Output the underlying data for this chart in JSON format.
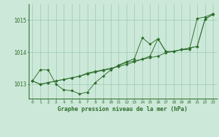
{
  "title": "Graphe pression niveau de la mer (hPa)",
  "background_color": "#cce8d8",
  "grid_color": "#99c8b0",
  "line_color": "#2d6e2d",
  "xlim": [
    -0.5,
    23.5
  ],
  "ylim": [
    1012.55,
    1015.5
  ],
  "yticks": [
    1013,
    1014,
    1015
  ],
  "xticks": [
    0,
    1,
    2,
    3,
    4,
    5,
    6,
    7,
    8,
    9,
    10,
    11,
    12,
    13,
    14,
    15,
    16,
    17,
    18,
    19,
    20,
    21,
    22,
    23
  ],
  "series1": [
    1013.1,
    1013.45,
    1013.45,
    1013.0,
    1012.82,
    1012.8,
    1012.7,
    1012.75,
    1013.05,
    1013.25,
    1013.45,
    1013.6,
    1013.7,
    1013.8,
    1014.45,
    1014.25,
    1014.42,
    1014.02,
    1014.02,
    1014.08,
    1014.08,
    1015.05,
    1015.1,
    1015.2
  ],
  "series2": [
    1013.1,
    1013.0,
    1013.05,
    1013.1,
    1013.15,
    1013.2,
    1013.25,
    1013.35,
    1013.4,
    1013.45,
    1013.5,
    1013.55,
    1013.62,
    1013.7,
    1013.78,
    1013.83,
    1013.88,
    1013.98,
    1014.03,
    1014.08,
    1014.13,
    1014.18,
    1015.03,
    1015.18
  ],
  "series3": [
    1013.1,
    1013.0,
    1013.05,
    1013.1,
    1013.15,
    1013.2,
    1013.25,
    1013.32,
    1013.38,
    1013.43,
    1013.48,
    1013.58,
    1013.68,
    1013.73,
    1013.78,
    1013.88,
    1014.42,
    1014.02,
    1014.02,
    1014.08,
    1014.13,
    1014.18,
    1015.03,
    1015.18
  ]
}
